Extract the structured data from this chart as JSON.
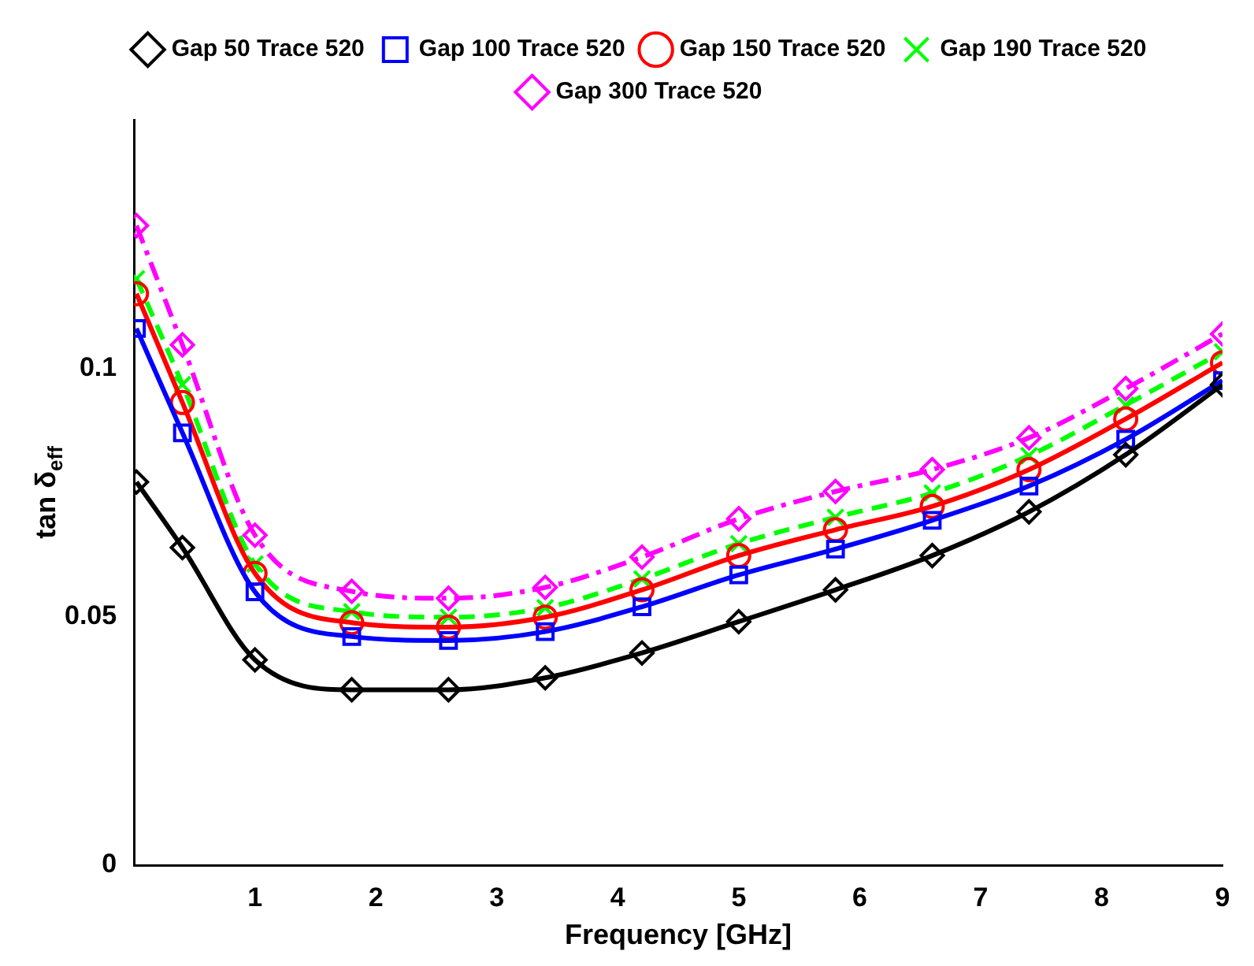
{
  "chart_data": {
    "type": "line",
    "xlabel": "Frequency [GHz]",
    "ylabel": "tan δ$_{eff}$",
    "x": [
      0.02,
      0.4,
      1.0,
      1.8,
      2.6,
      3.4,
      4.2,
      5.0,
      5.8,
      6.6,
      7.4,
      8.2,
      9.0
    ],
    "xlim": [
      0,
      9
    ],
    "xticks": [
      1,
      2,
      3,
      4,
      5,
      6,
      7,
      8,
      9
    ],
    "ylim": [
      0,
      0.15
    ],
    "yticks": [
      0,
      0.05,
      0.1
    ],
    "grid": false,
    "legend": "top",
    "series": [
      {
        "name": "Gap 50 Trace 520",
        "color": "#000000",
        "marker": "diamond",
        "line_style": "solid",
        "values": [
          0.0771,
          0.0639,
          0.0413,
          0.0353,
          0.0353,
          0.0377,
          0.0427,
          0.049,
          0.0554,
          0.0623,
          0.0711,
          0.0826,
          0.0967
        ]
      },
      {
        "name": "Gap 100 Trace 520",
        "color": "#0000ff",
        "marker": "square",
        "line_style": "solid",
        "values": [
          0.108,
          0.087,
          0.055,
          0.046,
          0.0452,
          0.047,
          0.052,
          0.0584,
          0.0636,
          0.0694,
          0.0763,
          0.0857,
          0.0975
        ]
      },
      {
        "name": "Gap 150 Trace 520",
        "color": "#ff0000",
        "marker": "circle",
        "line_style": "solid",
        "values": [
          0.115,
          0.0931,
          0.0587,
          0.0488,
          0.0479,
          0.0499,
          0.0554,
          0.0623,
          0.0675,
          0.0722,
          0.0796,
          0.0898,
          0.1011
        ]
      },
      {
        "name": "Gap 190 Trace 520",
        "color": "#00ff00",
        "marker": "cross",
        "line_style": "dashed",
        "values": [
          0.118,
          0.0967,
          0.0606,
          0.051,
          0.0499,
          0.0518,
          0.0576,
          0.0647,
          0.07,
          0.0749,
          0.0824,
          0.0926,
          0.1033
        ]
      },
      {
        "name": "Gap 300 Trace 520",
        "color": "#ff00ff",
        "marker": "diamond",
        "line_style": "dashdot",
        "values": [
          0.1287,
          0.1047,
          0.0664,
          0.0551,
          0.0537,
          0.0559,
          0.062,
          0.0697,
          0.0752,
          0.0796,
          0.086,
          0.0959,
          0.1069
        ]
      }
    ]
  }
}
